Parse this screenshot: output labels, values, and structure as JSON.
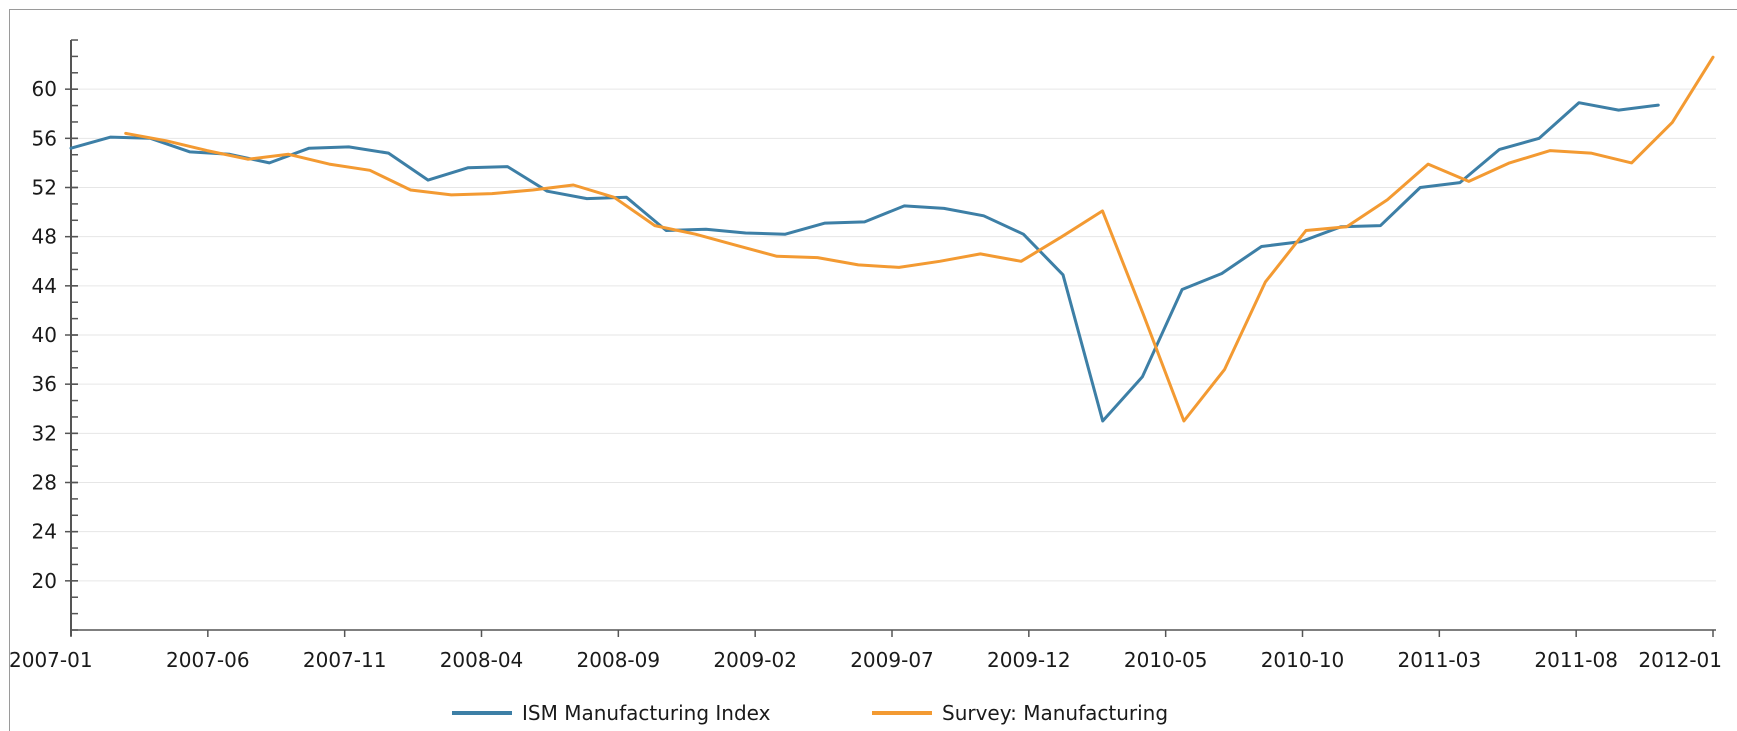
{
  "chart_data": {
    "type": "line",
    "title": "",
    "xlabel": "",
    "ylabel": "",
    "ylim": [
      16.0,
      64.0
    ],
    "y_ticks": [
      20,
      24,
      28,
      32,
      36,
      40,
      44,
      48,
      52,
      56,
      60
    ],
    "y_minor_step": 1.3333,
    "grid": "horizontal",
    "legend_position": "bottom",
    "x_labels": [
      "2007-01",
      "2007-06",
      "2007-11",
      "2008-04",
      "2008-09",
      "2009-02",
      "2009-07",
      "2009-12",
      "2010-05",
      "2010-10",
      "2011-03",
      "2011-08",
      "2012-01"
    ],
    "x_tick_step": 3,
    "series": [
      {
        "name": "ISM Manufacturing Index",
        "color": "#3d7fa6",
        "values": [
          55.2,
          56.1,
          56.0,
          54.9,
          54.7,
          54.0,
          55.2,
          55.3,
          54.8,
          52.6,
          53.6,
          53.7,
          51.7,
          51.1,
          51.2,
          48.5,
          48.6,
          48.3,
          48.2,
          49.1,
          49.2,
          50.5,
          50.3,
          49.7,
          48.2,
          44.9,
          33.0,
          36.6,
          43.7,
          45.0,
          47.2,
          47.6,
          48.8,
          48.9,
          52.0,
          52.4,
          55.1,
          56.0,
          58.9,
          58.3,
          58.7
        ],
        "start": "2007-01",
        "end": "2011-11"
      },
      {
        "name": "Survey: Manufacturing",
        "color": "#f39a32",
        "values": [
          56.4,
          55.8,
          55.0,
          54.3,
          54.7,
          53.9,
          53.4,
          51.8,
          51.4,
          51.5,
          51.8,
          52.2,
          51.2,
          48.9,
          48.2,
          47.3,
          46.4,
          46.3,
          45.7,
          45.5,
          46.0,
          46.6,
          46.0,
          48.0,
          50.1,
          41.7,
          33.0,
          37.2,
          44.3,
          48.5,
          48.8,
          51.0,
          53.9,
          52.5,
          54.0,
          55.0,
          54.8,
          54.0,
          57.3,
          62.6
        ],
        "start": "2007-03",
        "end": "2012-01"
      }
    ]
  }
}
